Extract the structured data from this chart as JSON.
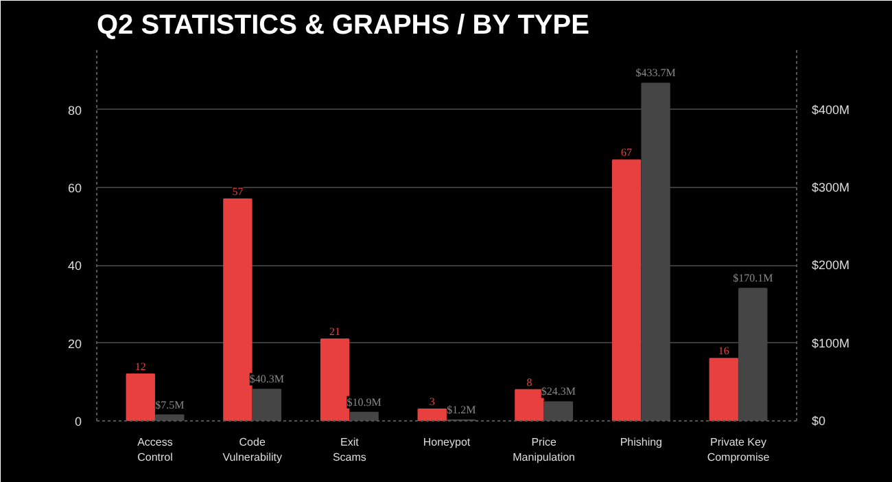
{
  "chart_data": {
    "type": "bar",
    "title": "Q2 STATISTICS & GRAPHS / BY TYPE",
    "categories": [
      "Access\nControl",
      "Code\nVulnerability",
      "Exit\nScams",
      "Honeypot",
      "Price\nManipulation",
      "Phishing",
      "Private Key\nCompromise"
    ],
    "series": [
      {
        "color": "#e8403f",
        "values": [
          12,
          57,
          21,
          3,
          8,
          67,
          16
        ],
        "value_labels": [
          "12",
          "57",
          "21",
          "3",
          "8",
          "67",
          "16"
        ]
      },
      {
        "color": "#454545",
        "axis": "y2",
        "values": [
          7.5,
          40.3,
          10.9,
          1.2,
          24.3,
          433.7,
          170.1
        ],
        "value_labels": [
          "$7.5M",
          "$40.3M",
          "$10.9M",
          "$1.2M",
          "$24.3M",
          "$433.7M",
          "$170.1M"
        ]
      }
    ],
    "ylim": [
      0,
      96
    ],
    "yticks": [
      0,
      20,
      40,
      60,
      80
    ],
    "y2lim": [
      0,
      480
    ],
    "y2ticks": [
      {
        "value": 0,
        "label": "$0"
      },
      {
        "value": 100,
        "label": "$100M"
      },
      {
        "value": 200,
        "label": "$200M"
      },
      {
        "value": 300,
        "label": "$300M"
      },
      {
        "value": 400,
        "label": "$400M"
      }
    ],
    "grid": "y"
  }
}
